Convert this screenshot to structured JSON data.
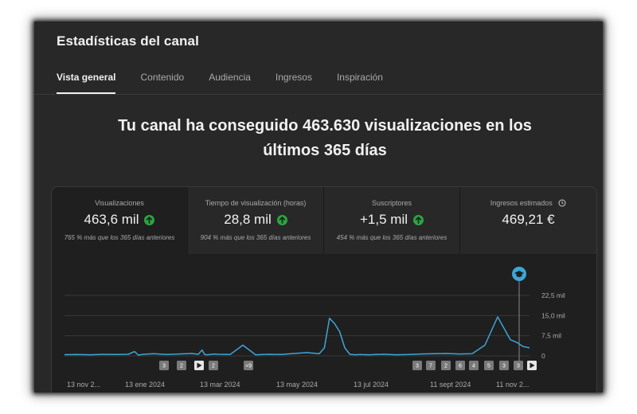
{
  "page": {
    "title": "Estadísticas del canal"
  },
  "tabs": [
    {
      "label": "Vista general",
      "active": true
    },
    {
      "label": "Contenido",
      "active": false
    },
    {
      "label": "Audiencia",
      "active": false
    },
    {
      "label": "Ingresos",
      "active": false
    },
    {
      "label": "Inspiración",
      "active": false
    }
  ],
  "headline": "Tu canal ha conseguido 463.630 visualizaciones en los últimos 365 días",
  "metrics": [
    {
      "label": "Visualizaciones",
      "value": "463,6 mil",
      "icon": "up-arrow-icon",
      "comparison": "765 % más que los 365 días anteriores"
    },
    {
      "label": "Tiempo de visualización (horas)",
      "value": "28,8 mil",
      "icon": "up-arrow-icon",
      "comparison": "904 % más que los 365 días anteriores"
    },
    {
      "label": "Suscriptores",
      "value": "+1,5 mil",
      "icon": "up-arrow-icon",
      "comparison": "454 % más que los 365 días anteriores"
    },
    {
      "label": "Ingresos estimados",
      "value": "469,21 €",
      "icon": "clock-icon",
      "comparison": ""
    }
  ],
  "colors": {
    "accent_green": "#2ba640",
    "line": "#3ea6d6",
    "background": "#282828"
  },
  "chart_data": {
    "type": "line",
    "y_ticks": [
      "22,5 mil",
      "15,0 mil",
      "7,5 mil",
      "0"
    ],
    "ylim": [
      0,
      30000
    ],
    "x_labels": [
      "13 nov 2...",
      "13 ene 2024",
      "13 mar 2024",
      "13 may 2024",
      "13 jul 2024",
      "11 sept 2024",
      "11 nov 2..."
    ],
    "series": [
      {
        "day": [
          0,
          10,
          20,
          30,
          40,
          50,
          55,
          58,
          60,
          62,
          70,
          80,
          90,
          100,
          105,
          108,
          110,
          112,
          118,
          120,
          130,
          140,
          150,
          160,
          170,
          180,
          190,
          200,
          204,
          208,
          212,
          216,
          220,
          224,
          228,
          232,
          236,
          240,
          244,
          248,
          250,
          255,
          260,
          270,
          280,
          290,
          300,
          310,
          320,
          330,
          340,
          350,
          355,
          360,
          365
        ],
        "views": [
          450,
          500,
          400,
          550,
          500,
          600,
          1600,
          300,
          450,
          600,
          800,
          500,
          700,
          900,
          600,
          2200,
          500,
          400,
          700,
          600,
          500,
          4000,
          400,
          600,
          500,
          900,
          1200,
          800,
          3000,
          14000,
          12000,
          9000,
          3000,
          600,
          400,
          500,
          450,
          400,
          500,
          550,
          600,
          500,
          400,
          500,
          700,
          800,
          900,
          700,
          800,
          4000,
          14500,
          6000,
          5000,
          3500,
          3000
        ]
      }
    ],
    "markers_left": [
      "3",
      "2",
      "▶",
      "2",
      "+9"
    ],
    "markers_right": [
      "3",
      "7",
      "2",
      "6",
      "4",
      "5",
      "3",
      "3",
      "▶"
    ]
  }
}
